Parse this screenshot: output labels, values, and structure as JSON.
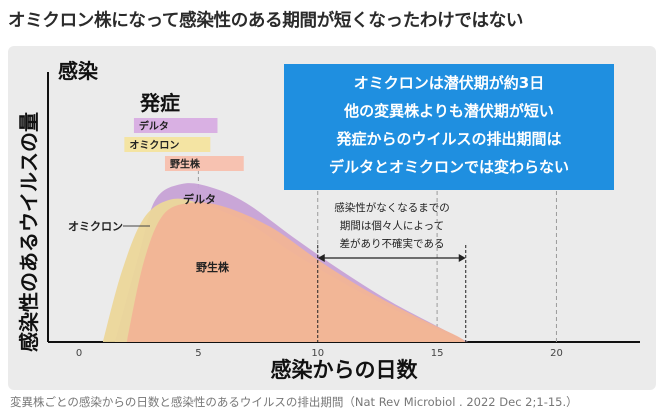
{
  "headline": "オミクロン株になって感染性のある期間が短くなったわけではない",
  "source": "変異株ごとの感染からの日数と感染性のあるウイルスの排出期間（Nat Rev Microbiol . 2022 Dec 2;1-15.）",
  "chart_data": {
    "type": "area",
    "xlabel": "感染からの日数",
    "ylabel": "感染性のあるウイルスの量",
    "y_corner_label": "感染",
    "x_ticks": [
      0,
      5,
      10,
      15,
      20
    ],
    "xlim": [
      -1.3,
      23.5
    ],
    "ylim": [
      0,
      1
    ],
    "series": [
      {
        "name": "デルタ",
        "color": "#c7a2d6",
        "points": [
          [
            1.5,
            0
          ],
          [
            2.5,
            0.55
          ],
          [
            3.2,
            0.9
          ],
          [
            4.3,
            1.0
          ],
          [
            5.5,
            0.98
          ],
          [
            7,
            0.88
          ],
          [
            9,
            0.66
          ],
          [
            11,
            0.45
          ],
          [
            13,
            0.26
          ],
          [
            15,
            0.1
          ],
          [
            16.3,
            0
          ]
        ]
      },
      {
        "name": "オミクロン",
        "color": "#ecd79a",
        "points": [
          [
            1.0,
            0
          ],
          [
            1.8,
            0.45
          ],
          [
            2.7,
            0.78
          ],
          [
            3.8,
            0.9
          ],
          [
            5,
            0.88
          ],
          [
            7,
            0.76
          ],
          [
            9,
            0.56
          ],
          [
            11,
            0.38
          ],
          [
            13,
            0.22
          ],
          [
            15,
            0.08
          ],
          [
            16.1,
            0
          ]
        ]
      },
      {
        "name": "野生株",
        "color": "#f2b496",
        "points": [
          [
            2.0,
            0
          ],
          [
            2.7,
            0.5
          ],
          [
            3.5,
            0.8
          ],
          [
            4.6,
            0.88
          ],
          [
            6,
            0.86
          ],
          [
            8,
            0.73
          ],
          [
            10,
            0.52
          ],
          [
            12,
            0.33
          ],
          [
            14,
            0.17
          ],
          [
            15.8,
            0.04
          ],
          [
            16.2,
            0
          ]
        ]
      }
    ],
    "symptom_label": "発症",
    "symptom_bars": [
      {
        "name": "デルタ",
        "start": 2.3,
        "end": 5.8,
        "color": "#d9b0e3"
      },
      {
        "name": "オミクロン",
        "start": 1.9,
        "end": 5.5,
        "color": "#f4e4a3"
      },
      {
        "name": "野生株",
        "start": 3.6,
        "end": 6.9,
        "color": "#f7c2b1"
      }
    ],
    "series_labels": {
      "delta": "デルタ",
      "omicron": "オミクロン",
      "wild": "野生株"
    },
    "annotation": {
      "lines": [
        "感染性がなくなるまでの",
        "期間は個々人によって",
        "差があり不確実である"
      ],
      "arrow_from": 10,
      "arrow_to": 16.2
    },
    "callout": {
      "lines": [
        "オミクロンは潜伏期が約3日",
        "他の変異株よりも潜伏期が短い",
        "発症からのウイルスの排出期間は",
        "デルタとオミクロンでは変わらない"
      ],
      "color": "#1f8fe0"
    }
  }
}
